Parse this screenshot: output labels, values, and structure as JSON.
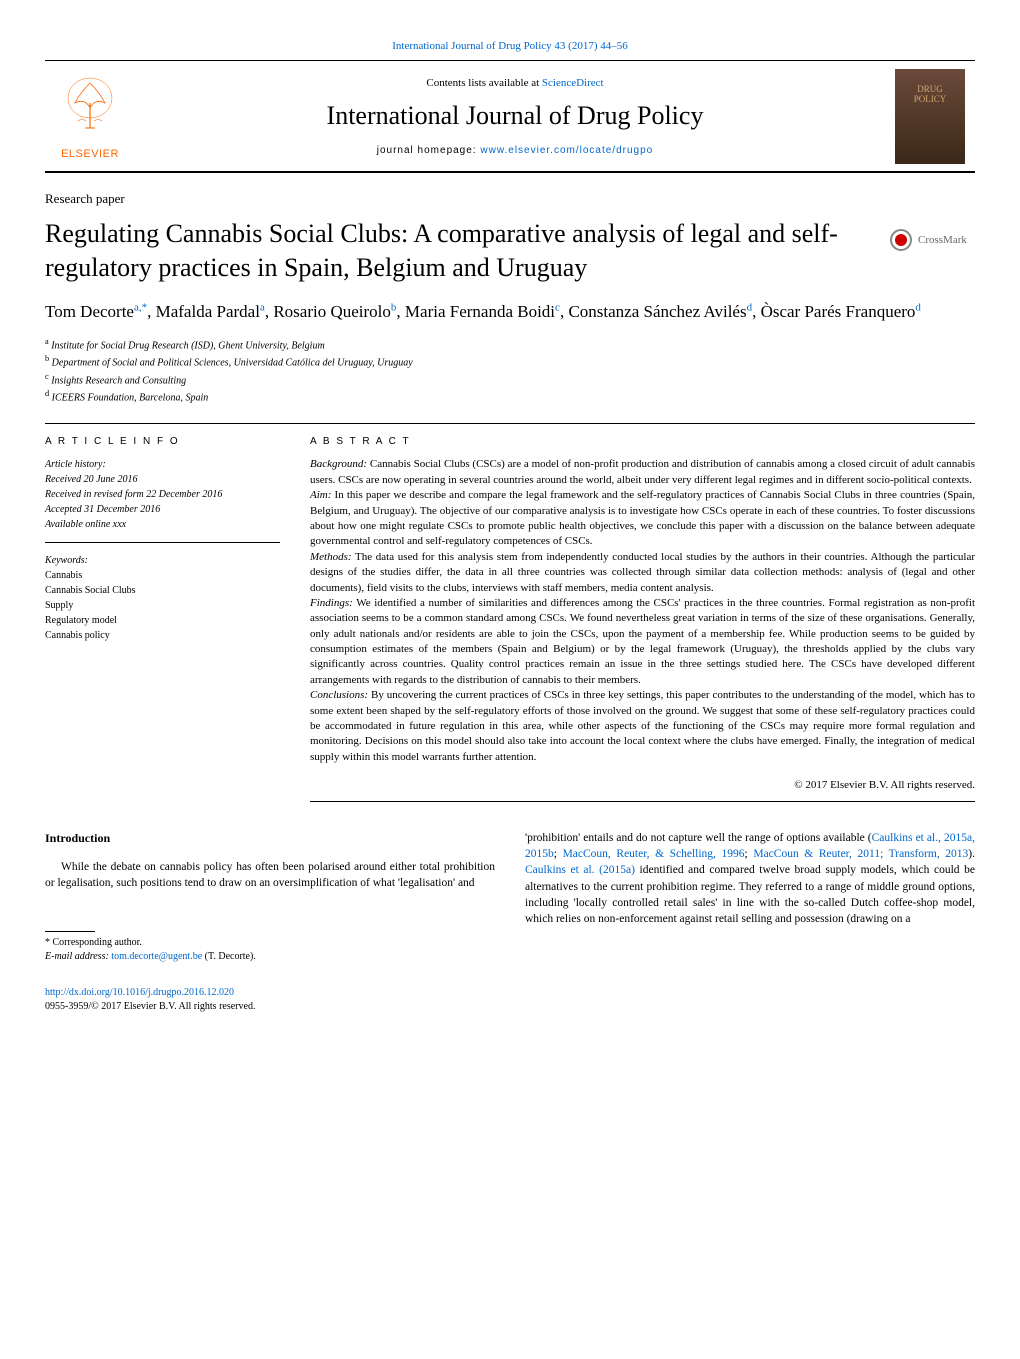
{
  "top_link": "International Journal of Drug Policy 43 (2017) 44–56",
  "header": {
    "contents_prefix": "Contents lists available at ",
    "contents_link": "ScienceDirect",
    "journal_name": "International Journal of Drug Policy",
    "homepage_prefix": "journal homepage: ",
    "homepage_link": "www.elsevier.com/locate/drugpo",
    "publisher": "ELSEVIER",
    "cover_line1": "DRUG",
    "cover_line2": "POLICY"
  },
  "section_label": "Research paper",
  "article_title": "Regulating Cannabis Social Clubs: A comparative analysis of legal and self-regulatory practices in Spain, Belgium and Uruguay",
  "crossmark": "CrossMark",
  "authors_html": "Tom Decorte<sup>a,*</sup>, Mafalda Pardal<sup>a</sup>, Rosario Queirolo<sup>b</sup>, Maria Fernanda Boidi<sup>c</sup>, Constanza Sánchez Avilés<sup>d</sup>, Òscar Parés Franquero<sup>d</sup>",
  "affiliations": {
    "a": "Institute for Social Drug Research (ISD), Ghent University, Belgium",
    "b": "Department of Social and Political Sciences, Universidad Católica del Uruguay, Uruguay",
    "c": "Insights Research and Consulting",
    "d": "ICEERS Foundation, Barcelona, Spain"
  },
  "info": {
    "header": "A R T I C L E   I N F O",
    "history_label": "Article history:",
    "received": "Received 20 June 2016",
    "revised": "Received in revised form 22 December 2016",
    "accepted": "Accepted 31 December 2016",
    "online": "Available online xxx",
    "keywords_label": "Keywords:",
    "keywords": [
      "Cannabis",
      "Cannabis Social Clubs",
      "Supply",
      "Regulatory model",
      "Cannabis policy"
    ]
  },
  "abstract": {
    "header": "A B S T R A C T",
    "background_label": "Background:",
    "background": " Cannabis Social Clubs (CSCs) are a model of non-profit production and distribution of cannabis among a closed circuit of adult cannabis users. CSCs are now operating in several countries around the world, albeit under very different legal regimes and in different socio-political contexts.",
    "aim_label": "Aim:",
    "aim": " In this paper we describe and compare the legal framework and the self-regulatory practices of Cannabis Social Clubs in three countries (Spain, Belgium, and Uruguay). The objective of our comparative analysis is to investigate how CSCs operate in each of these countries. To foster discussions about how one might regulate CSCs to promote public health objectives, we conclude this paper with a discussion on the balance between adequate governmental control and self-regulatory competences of CSCs.",
    "methods_label": "Methods:",
    "methods": " The data used for this analysis stem from independently conducted local studies by the authors in their countries. Although the particular designs of the studies differ, the data in all three countries was collected through similar data collection methods: analysis of (legal and other documents), field visits to the clubs, interviews with staff members, media content analysis.",
    "findings_label": "Findings:",
    "findings": " We identified a number of similarities and differences among the CSCs' practices in the three countries. Formal registration as non-profit association seems to be a common standard among CSCs. We found nevertheless great variation in terms of the size of these organisations. Generally, only adult nationals and/or residents are able to join the CSCs, upon the payment of a membership fee. While production seems to be guided by consumption estimates of the members (Spain and Belgium) or by the legal framework (Uruguay), the thresholds applied by the clubs vary significantly across countries. Quality control practices remain an issue in the three settings studied here. The CSCs have developed different arrangements with regards to the distribution of cannabis to their members.",
    "conclusions_label": "Conclusions:",
    "conclusions": " By uncovering the current practices of CSCs in three key settings, this paper contributes to the understanding of the model, which has to some extent been shaped by the self-regulatory efforts of those involved on the ground. We suggest that some of these self-regulatory practices could be accommodated in future regulation in this area, while other aspects of the functioning of the CSCs may require more formal regulation and monitoring. Decisions on this model should also take into account the local context where the clubs have emerged. Finally, the integration of medical supply within this model warrants further attention.",
    "copyright": "© 2017 Elsevier B.V. All rights reserved."
  },
  "body": {
    "intro_h": "Introduction",
    "left_p1": "While the debate on cannabis policy has often been polarised around either total prohibition or legalisation, such positions tend to draw on an oversimplification of what 'legalisation' and",
    "right_p1_pre": "'prohibition' entails and do not capture well the range of options available (",
    "right_ref1": "Caulkins et al., 2015a, 2015b",
    "right_ref2": "MacCoun, Reuter, & Schelling, 1996",
    "right_ref3": "MacCoun & Reuter, 2011; Transform, 2013",
    "right_p1_post1": "). ",
    "right_ref4": "Caulkins et al. (2015a)",
    "right_p1_post2": " identified and compared twelve broad supply models, which could be alternatives to the current prohibition regime. They referred to a range of middle ground options, including 'locally controlled retail sales' in line with the so-called Dutch coffee-shop model, which relies on non-enforcement against retail selling and possession (drawing on a"
  },
  "footnote": {
    "star": "* Corresponding author.",
    "email_label": "E-mail address: ",
    "email": "tom.decorte@ugent.be",
    "email_suffix": " (T. Decorte)."
  },
  "footer": {
    "doi": "http://dx.doi.org/10.1016/j.drugpo.2016.12.020",
    "issn": "0955-3959/© 2017 Elsevier B.V. All rights reserved."
  },
  "colors": {
    "link": "#0066cc",
    "elsevier_orange": "#ff6600",
    "crossmark_red": "#cc0000",
    "cover_gold": "#d4a574"
  }
}
